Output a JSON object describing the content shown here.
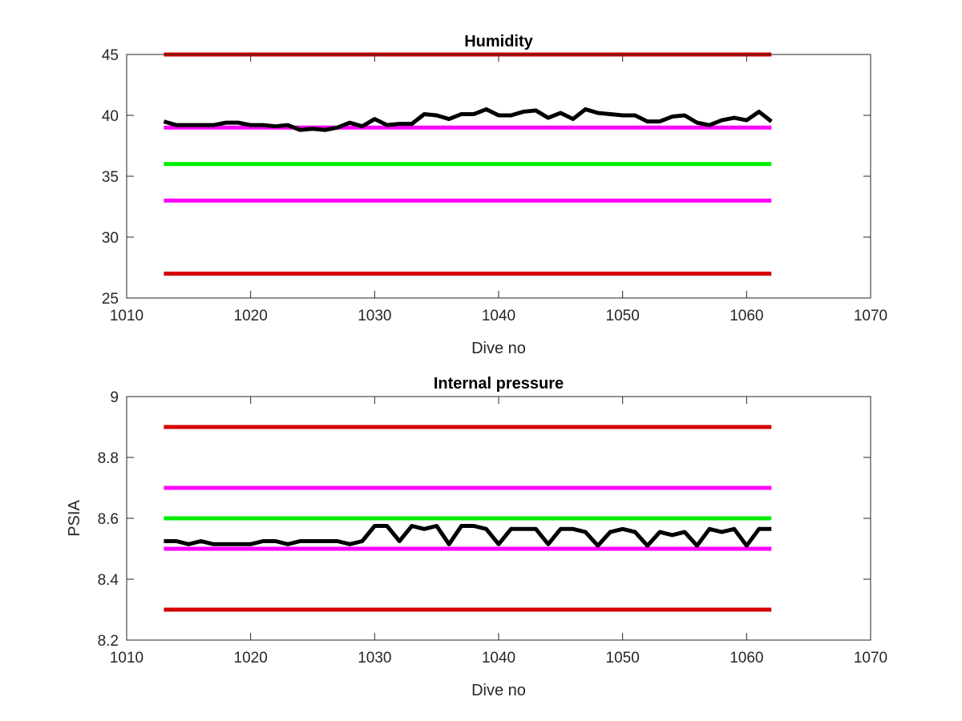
{
  "chart_data": [
    {
      "type": "line",
      "title": "Humidity",
      "xlabel": "Dive no",
      "ylabel": "",
      "xlim": [
        1010,
        1070
      ],
      "ylim": [
        25,
        45
      ],
      "xticks": [
        1010,
        1020,
        1030,
        1040,
        1050,
        1060,
        1070
      ],
      "yticks": [
        25,
        30,
        35,
        40,
        45
      ],
      "grid": false,
      "reference_lines": [
        {
          "y": 45,
          "color": "#d40000",
          "x_range": [
            1013,
            1062
          ]
        },
        {
          "y": 39,
          "color": "#ff00ff",
          "x_range": [
            1013,
            1062
          ]
        },
        {
          "y": 36,
          "color": "#00ee00",
          "x_range": [
            1013,
            1062
          ]
        },
        {
          "y": 33,
          "color": "#ff00ff",
          "x_range": [
            1013,
            1062
          ]
        },
        {
          "y": 27,
          "color": "#d40000",
          "x_range": [
            1013,
            1062
          ]
        }
      ],
      "series": [
        {
          "color": "#000000",
          "x": [
            1013,
            1014,
            1015,
            1016,
            1017,
            1018,
            1019,
            1020,
            1021,
            1022,
            1023,
            1024,
            1025,
            1026,
            1027,
            1028,
            1029,
            1030,
            1031,
            1032,
            1033,
            1034,
            1035,
            1036,
            1037,
            1038,
            1039,
            1040,
            1041,
            1042,
            1043,
            1044,
            1045,
            1046,
            1047,
            1048,
            1049,
            1050,
            1051,
            1052,
            1053,
            1054,
            1055,
            1056,
            1057,
            1058,
            1059,
            1060,
            1061,
            1062
          ],
          "y": [
            39.5,
            39.2,
            39.2,
            39.2,
            39.2,
            39.4,
            39.4,
            39.2,
            39.2,
            39.1,
            39.2,
            38.8,
            38.9,
            38.8,
            39.0,
            39.4,
            39.1,
            39.7,
            39.2,
            39.3,
            39.3,
            40.1,
            40.0,
            39.7,
            40.1,
            40.1,
            40.5,
            40.0,
            40.0,
            40.3,
            40.4,
            39.8,
            40.2,
            39.7,
            40.5,
            40.2,
            40.1,
            40.0,
            40.0,
            39.5,
            39.5,
            39.9,
            40.0,
            39.4,
            39.2,
            39.6,
            39.8,
            39.6,
            40.3,
            39.5
          ]
        }
      ]
    },
    {
      "type": "line",
      "title": "Internal pressure",
      "xlabel": "Dive no",
      "ylabel": "PSIA",
      "xlim": [
        1010,
        1070
      ],
      "ylim": [
        8.2,
        9.0
      ],
      "xticks": [
        1010,
        1020,
        1030,
        1040,
        1050,
        1060,
        1070
      ],
      "yticks": [
        8.2,
        8.4,
        8.6,
        8.8,
        9
      ],
      "grid": false,
      "reference_lines": [
        {
          "y": 8.9,
          "color": "#d40000",
          "x_range": [
            1013,
            1062
          ]
        },
        {
          "y": 8.7,
          "color": "#ff00ff",
          "x_range": [
            1013,
            1062
          ]
        },
        {
          "y": 8.6,
          "color": "#00ee00",
          "x_range": [
            1013,
            1062
          ]
        },
        {
          "y": 8.5,
          "color": "#ff00ff",
          "x_range": [
            1013,
            1062
          ]
        },
        {
          "y": 8.3,
          "color": "#d40000",
          "x_range": [
            1013,
            1062
          ]
        }
      ],
      "series": [
        {
          "color": "#000000",
          "x": [
            1013,
            1014,
            1015,
            1016,
            1017,
            1018,
            1019,
            1020,
            1021,
            1022,
            1023,
            1024,
            1025,
            1026,
            1027,
            1028,
            1029,
            1030,
            1031,
            1032,
            1033,
            1034,
            1035,
            1036,
            1037,
            1038,
            1039,
            1040,
            1041,
            1042,
            1043,
            1044,
            1045,
            1046,
            1047,
            1048,
            1049,
            1050,
            1051,
            1052,
            1053,
            1054,
            1055,
            1056,
            1057,
            1058,
            1059,
            1060,
            1061,
            1062
          ],
          "y": [
            8.525,
            8.525,
            8.515,
            8.525,
            8.515,
            8.515,
            8.515,
            8.515,
            8.525,
            8.525,
            8.515,
            8.525,
            8.525,
            8.525,
            8.525,
            8.515,
            8.525,
            8.575,
            8.575,
            8.525,
            8.575,
            8.565,
            8.575,
            8.515,
            8.575,
            8.575,
            8.565,
            8.515,
            8.565,
            8.565,
            8.565,
            8.515,
            8.565,
            8.565,
            8.555,
            8.51,
            8.555,
            8.565,
            8.555,
            8.51,
            8.555,
            8.545,
            8.555,
            8.51,
            8.565,
            8.555,
            8.565,
            8.51,
            8.565,
            8.565
          ]
        }
      ]
    }
  ]
}
